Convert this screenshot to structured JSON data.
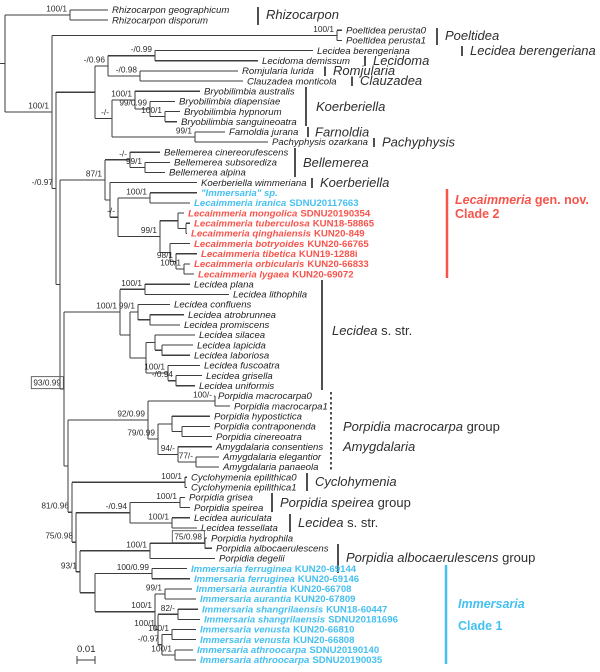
{
  "figure": {
    "scale_bar": {
      "label": "0.01"
    },
    "colors": {
      "red": "#f7544c",
      "blue": "#45c0f0",
      "line": "#3d3d3d",
      "text": "#1e1e1e",
      "label": "#2e2e2e"
    }
  },
  "taxa": [
    {
      "name": "Rhizocarpon geographicum",
      "code": "",
      "color": "default"
    },
    {
      "name": "Rhizocarpon disporum",
      "code": "",
      "color": "default"
    },
    {
      "name": "Poeltidea perusta0",
      "code": "",
      "color": "default"
    },
    {
      "name": "Poeltidea perusta1",
      "code": "",
      "color": "default"
    },
    {
      "name": "Lecidea berengeriana",
      "code": "",
      "color": "default"
    },
    {
      "name": "Lecidoma demissum",
      "code": "",
      "color": "default"
    },
    {
      "name": "Romjularia lurida",
      "code": "",
      "color": "default"
    },
    {
      "name": "Clauzadea monticola",
      "code": "",
      "color": "default"
    },
    {
      "name": "Bryobilimbia australis",
      "code": "",
      "color": "default"
    },
    {
      "name": "Bryobilimbia diapensiae",
      "code": "",
      "color": "default"
    },
    {
      "name": "Bryobilimbia hypnorum",
      "code": "",
      "color": "default"
    },
    {
      "name": "Bryobilimbia sanguineoatra",
      "code": "",
      "color": "default"
    },
    {
      "name": "Farnoldia jurana",
      "code": "",
      "color": "default"
    },
    {
      "name": "Pachyphysis ozarkana",
      "code": "",
      "color": "default"
    },
    {
      "name": "Bellemerea cinereorufescens",
      "code": "",
      "color": "default"
    },
    {
      "name": "Bellemerea subsorediza",
      "code": "",
      "color": "default"
    },
    {
      "name": "Bellemerea alpina",
      "code": "",
      "color": "default"
    },
    {
      "name": "Koerberiella wimmeriana",
      "code": "",
      "color": "default"
    },
    {
      "name": "\"Immersaria\" sp.",
      "code": "",
      "color": "blue"
    },
    {
      "name": "Lecaimmeria iranica",
      "code": "SDNU20117663",
      "color": "blue"
    },
    {
      "name": "Lecaimmeria mongolica",
      "code": "SDNU20190354",
      "color": "red"
    },
    {
      "name": "Lecaimmeria tuberculosa",
      "code": "KUN18-58865",
      "color": "red"
    },
    {
      "name": "Lecaimmeria qinghaiensis",
      "code": "KUN20-849",
      "color": "red"
    },
    {
      "name": "Lecaimmeria botryoides",
      "code": "KUN20-66765",
      "color": "red"
    },
    {
      "name": "Lecaimmeria tibetica",
      "code": "KUN19-1288i",
      "color": "red"
    },
    {
      "name": "Lecaimmeria orbicularis",
      "code": "KUN20-66833",
      "color": "red"
    },
    {
      "name": "Lecaimmeria lygaea",
      "code": "KUN20-69072",
      "color": "red"
    },
    {
      "name": "Lecidea plana",
      "code": "",
      "color": "default"
    },
    {
      "name": "Lecidea lithophila",
      "code": "",
      "color": "default"
    },
    {
      "name": "Lecidea confluens",
      "code": "",
      "color": "default"
    },
    {
      "name": "Lecidea atrobrunnea",
      "code": "",
      "color": "default"
    },
    {
      "name": "Lecidea promiscens",
      "code": "",
      "color": "default"
    },
    {
      "name": "Lecidea silacea",
      "code": "",
      "color": "default"
    },
    {
      "name": "Lecidea lapicida",
      "code": "",
      "color": "default"
    },
    {
      "name": "Lecidea laboriosa",
      "code": "",
      "color": "default"
    },
    {
      "name": "Lecidea fuscoatra",
      "code": "",
      "color": "default"
    },
    {
      "name": "Lecidea grisella",
      "code": "",
      "color": "default"
    },
    {
      "name": "Lecidea uniformis",
      "code": "",
      "color": "default"
    },
    {
      "name": "Porpidia macrocarpa0",
      "code": "",
      "color": "default"
    },
    {
      "name": "Porpidia macrocarpa1",
      "code": "",
      "color": "default"
    },
    {
      "name": "Porpidia hypostictica",
      "code": "",
      "color": "default"
    },
    {
      "name": "Porpidia contraponenda",
      "code": "",
      "color": "default"
    },
    {
      "name": "Porpidia cinereoatra",
      "code": "",
      "color": "default"
    },
    {
      "name": "Amygdalaria consentiens",
      "code": "",
      "color": "default"
    },
    {
      "name": "Amygdalaria elegantior",
      "code": "",
      "color": "default"
    },
    {
      "name": "Amygdalaria panaeola",
      "code": "",
      "color": "default"
    },
    {
      "name": "Cyclohymenia epilithica0",
      "code": "",
      "color": "default"
    },
    {
      "name": "Cyclohymenia epilithica1",
      "code": "",
      "color": "default"
    },
    {
      "name": "Porpidia grisea",
      "code": "",
      "color": "default"
    },
    {
      "name": "Porpidia speirea",
      "code": "",
      "color": "default"
    },
    {
      "name": "Lecidea auriculata",
      "code": "",
      "color": "default"
    },
    {
      "name": "Lecidea tessellata",
      "code": "",
      "color": "default"
    },
    {
      "name": "Porpidia hydrophila",
      "code": "",
      "color": "default"
    },
    {
      "name": "Porpidia albocaerulescens",
      "code": "",
      "color": "default"
    },
    {
      "name": "Porpidia degelii",
      "code": "",
      "color": "default"
    },
    {
      "name": "Immersaria ferruginea",
      "code": "KUN20-69144",
      "color": "blue"
    },
    {
      "name": "Immersaria ferruginea",
      "code": "KUN20-69146",
      "color": "blue"
    },
    {
      "name": "Immersaria aurantia",
      "code": "KUN20-66708",
      "color": "blue"
    },
    {
      "name": "Immersaria aurantia",
      "code": "KUN20-67809",
      "color": "blue"
    },
    {
      "name": "Immersaria shangrilaensis",
      "code": "KUN18-60447",
      "color": "blue"
    },
    {
      "name": "Immersaria shangrilaensis",
      "code": "SDNU20181696",
      "color": "blue"
    },
    {
      "name": "Immersaria venusta",
      "code": "KUN20-66810",
      "color": "blue"
    },
    {
      "name": "Immersaria venusta",
      "code": "KUN20-66808",
      "color": "blue"
    },
    {
      "name": "Immersaria athroocarpa",
      "code": "SDNU20190140",
      "color": "blue"
    },
    {
      "name": "Immersaria athroocarpa",
      "code": "SDNU20190035",
      "color": "blue"
    }
  ],
  "supports": {
    "RZ": "100/1",
    "A": "100/1",
    "PO": "100/1",
    "B": "-/0.97",
    "U1": "-/0.96",
    "U1a": "-/0.99",
    "U1b": "-/0.98",
    "U2": "-/-",
    "BR": "100/1",
    "BR1": "99/0.99",
    "BR2": "100/1",
    "FP": "99/1",
    "BE": "-/-",
    "BE1": "99/1",
    "C1": "87/1",
    "LC": "-/-",
    "LC1": "100/1",
    "LC2": "99/1",
    "LC2d": "98/1",
    "LC2e": "100/1",
    "LS": "100/1",
    "LS1": "100/1",
    "LS3": "99/1",
    "LS8": "100/1",
    "LS9": "-/0.94",
    "D": "93/0.99",
    "PM": "92/0.99",
    "PM1": "100/-",
    "PM2": "79/0.99",
    "AM": "94/-",
    "AM1": "77/-",
    "CY": "100/1",
    "F": "81/0.96",
    "H": "-/0.94",
    "PS": "100/1",
    "LA": "100/1",
    "G": "75/0.98",
    "PA1": "75/0.98",
    "PA": "100/1",
    "I": "93/1",
    "IM1": "100/0.99",
    "IM3": "99/1",
    "IM2": "100/1",
    "IM5": "82/-",
    "IM4": "100/1",
    "IM7": "100/1",
    "IM6": "-/0.97",
    "IM8": "100/1"
  },
  "clades": [
    {
      "italic": "Rhizocarpon",
      "plain": "",
      "line2": "",
      "color": "default"
    },
    {
      "italic": "Poeltidea",
      "plain": "",
      "line2": "",
      "color": "default"
    },
    {
      "italic": "Lecidea berengeriana",
      "plain": "",
      "line2": "",
      "color": "default"
    },
    {
      "italic": "Lecidoma",
      "plain": "",
      "line2": "",
      "color": "default"
    },
    {
      "italic": "Romjularia",
      "plain": "",
      "line2": "",
      "color": "default"
    },
    {
      "italic": "Clauzadea",
      "plain": "",
      "line2": "",
      "color": "default"
    },
    {
      "italic": "Koerberiella",
      "plain": "",
      "line2": "",
      "color": "default"
    },
    {
      "italic": "Farnoldia",
      "plain": "",
      "line2": "",
      "color": "default"
    },
    {
      "italic": "Pachyphysis",
      "plain": "",
      "line2": "",
      "color": "default"
    },
    {
      "italic": "Bellemerea",
      "plain": "",
      "line2": "",
      "color": "default"
    },
    {
      "italic": "Koerberiella",
      "plain": "",
      "line2": "",
      "color": "default"
    },
    {
      "italic": "Lecaimmeria",
      "plain": " gen. nov.",
      "line2": "Clade 2",
      "color": "red"
    },
    {
      "italic": "Lecidea",
      "plain": " s. str.",
      "line2": "",
      "color": "default"
    },
    {
      "italic": "Porpidia macrocarpa",
      "plain": " group",
      "line2": "Amygdalaria",
      "color": "default"
    },
    {
      "italic": "Cyclohymenia",
      "plain": "",
      "line2": "",
      "color": "default"
    },
    {
      "italic": "Porpidia speirea",
      "plain": " group",
      "line2": "",
      "color": "default"
    },
    {
      "italic": "Lecidea",
      "plain": " s. str.",
      "line2": "",
      "color": "default"
    },
    {
      "italic": "Porpidia albocaerulescens",
      "plain": " group",
      "line2": "",
      "color": "default"
    },
    {
      "italic": "Immersaria",
      "plain": "",
      "line2": "Clade 1",
      "color": "blue"
    }
  ]
}
